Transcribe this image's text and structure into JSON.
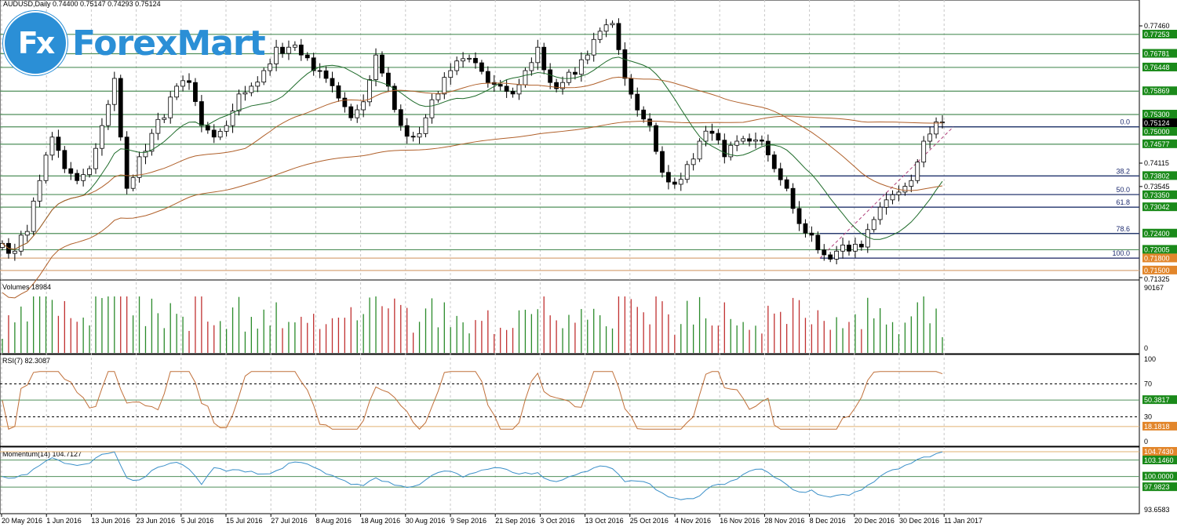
{
  "header": {
    "title": "AUDUSD,Daily  0.74400 0.75147 0.74293 0.75124"
  },
  "logo": {
    "badge": "Fx",
    "text": "ForexMart"
  },
  "colors": {
    "level_green": "#1a8a1a",
    "level_orange": "#e2862b",
    "fib": "#1c2a6e",
    "ma_fast": "#1e6b2a",
    "ma_slow": "#b0602a",
    "rsi": "#c0703a",
    "momentum": "#3a8fc8",
    "bull": "#ffffff",
    "bear": "#000000"
  },
  "chart_data": {
    "type": "candlestick",
    "symbol": "AUDUSD",
    "timeframe": "Daily",
    "ohlc_last": {
      "open": 0.744,
      "high": 0.75147,
      "low": 0.74293,
      "close": 0.75124
    },
    "closes": [
      0.7216,
      0.7197,
      0.7245,
      0.7369,
      0.7475,
      0.7398,
      0.7369,
      0.7398,
      0.7503,
      0.7618,
      0.735,
      0.7427,
      0.7484,
      0.7522,
      0.7599,
      0.7608,
      0.7503,
      0.7475,
      0.7503,
      0.758,
      0.7599,
      0.7637,
      0.7694,
      0.7694,
      0.7675,
      0.7637,
      0.7618,
      0.757,
      0.7522,
      0.7561,
      0.7675,
      0.7599,
      0.7503,
      0.7475,
      0.7522,
      0.758,
      0.7637,
      0.7666,
      0.7656,
      0.7608,
      0.7599,
      0.758,
      0.7637,
      0.7694,
      0.7608,
      0.7608,
      0.7628,
      0.7675,
      0.7733,
      0.7752,
      0.7618,
      0.7541,
      0.7503,
      0.7389,
      0.736,
      0.7408,
      0.7465,
      0.7484,
      0.7427,
      0.7465,
      0.7465,
      0.7465,
      0.7398,
      0.735,
      0.7264,
      0.7236,
      0.7188,
      0.7197,
      0.7197,
      0.7207,
      0.7274,
      0.7322,
      0.7341,
      0.7369,
      0.7465,
      0.7512
    ],
    "price_axis": {
      "range": [
        0.71325,
        0.7746
      ],
      "labels": [
        "0.77460",
        "0.74115",
        "0.73545",
        "0.71325"
      ]
    },
    "current_price": "0.75124",
    "levels": [
      {
        "price": 0.77253,
        "label": "0.77253",
        "color": "green"
      },
      {
        "price": 0.76781,
        "label": "0.76781",
        "color": "green"
      },
      {
        "price": 0.76448,
        "label": "0.76448",
        "color": "green"
      },
      {
        "price": 0.75869,
        "label": "0.75869",
        "color": "green"
      },
      {
        "price": 0.753,
        "label": "0.75300",
        "color": "green"
      },
      {
        "price": 0.75,
        "label": "0.75000",
        "color": "green"
      },
      {
        "price": 0.74577,
        "label": "0.74577",
        "color": "green"
      },
      {
        "price": 0.73802,
        "label": "0.73802",
        "color": "green"
      },
      {
        "price": 0.7335,
        "label": "0.73350",
        "color": "green"
      },
      {
        "price": 0.73042,
        "label": "0.73042",
        "color": "green"
      },
      {
        "price": 0.724,
        "label": "0.72400",
        "color": "green"
      },
      {
        "price": 0.72005,
        "label": "0.72005",
        "color": "green"
      },
      {
        "price": 0.718,
        "label": "0.71800",
        "color": "orange"
      },
      {
        "price": 0.715,
        "label": "0.71500",
        "color": "orange"
      }
    ],
    "fibonacci": [
      {
        "level": "0.0",
        "price": 0.75
      },
      {
        "level": "38.2",
        "price": 0.73802
      },
      {
        "level": "50.0",
        "price": 0.7335
      },
      {
        "level": "61.8",
        "price": 0.73042
      },
      {
        "level": "78.6",
        "price": 0.724
      },
      {
        "level": "100.0",
        "price": 0.718
      }
    ],
    "dates": [
      "20 May 2016",
      "1 Jun 2016",
      "13 Jun 2016",
      "23 Jun 2016",
      "5 Jul 2016",
      "15 Jul 2016",
      "27 Jul 2016",
      "8 Aug 2016",
      "18 Aug 2016",
      "30 Aug 2016",
      "9 Sep 2016",
      "21 Sep 2016",
      "3 Oct 2016",
      "13 Oct 2016",
      "25 Oct 2016",
      "4 Nov 2016",
      "16 Nov 2016",
      "28 Nov 2016",
      "8 Dec 2016",
      "20 Dec 2016",
      "30 Dec 2016",
      "11 Jan 2017"
    ],
    "volume": {
      "label": "Volumes 18984",
      "axis_max": "90167",
      "axis_min": "0"
    },
    "rsi": {
      "label": "RSI(7) 82.3087",
      "axis": [
        "100",
        "70",
        "30",
        "0"
      ],
      "levels": [
        {
          "value": 50.3817,
          "label": "50.3817",
          "color": "green"
        },
        {
          "value": 18.1818,
          "label": "18.1818",
          "color": "orange"
        }
      ]
    },
    "momentum": {
      "label": "Momentum(14) 104.7127",
      "range": [
        93.6583,
        104.743
      ],
      "axis_min": "93.6583",
      "levels": [
        {
          "value": 104.743,
          "label": "104.7430",
          "color": "orange"
        },
        {
          "value": 103.146,
          "label": "103.1460",
          "color": "green"
        },
        {
          "value": 100.0,
          "label": "100.0000",
          "color": "green"
        },
        {
          "value": 97.9823,
          "label": "97.9823",
          "color": "green"
        }
      ]
    }
  }
}
